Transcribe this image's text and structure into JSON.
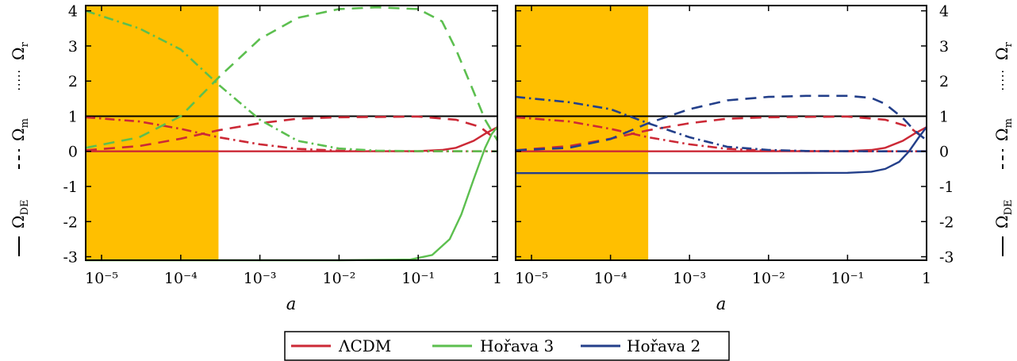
{
  "colors": {
    "lcdm": "#cc2936",
    "horava3": "#5cbf4f",
    "horava2": "#233f8a",
    "shade": "#ffbf00"
  },
  "side_labels": {
    "de": "Ω",
    "de_sub": "DE",
    "m": "Ω",
    "m_sub": "m",
    "r": "Ω",
    "r_sub": "r"
  },
  "legend": [
    {
      "key": "lcdm",
      "label": "ΛCDM"
    },
    {
      "key": "horava3",
      "label": "Hořava 3"
    },
    {
      "key": "horava2",
      "label": "Hořava 2"
    }
  ],
  "chart_data": [
    {
      "type": "line",
      "xlabel": "a",
      "xscale": "log",
      "xlim": [
        6.3e-06,
        1
      ],
      "ylim": [
        -3.1,
        4.15
      ],
      "xticks": [
        {
          "v": 1e-05,
          "label": "10⁻⁵"
        },
        {
          "v": 0.0001,
          "label": "10⁻⁴"
        },
        {
          "v": 0.001,
          "label": "10⁻³"
        },
        {
          "v": 0.01,
          "label": "10⁻²"
        },
        {
          "v": 0.1,
          "label": "10⁻¹"
        },
        {
          "v": 1,
          "label": "1"
        }
      ],
      "yticks": [
        {
          "v": -3,
          "label": "-3"
        },
        {
          "v": -2,
          "label": "-2"
        },
        {
          "v": -1,
          "label": "-1"
        },
        {
          "v": 0,
          "label": "0"
        },
        {
          "v": 1,
          "label": "1"
        },
        {
          "v": 2,
          "label": "2"
        },
        {
          "v": 3,
          "label": "3"
        },
        {
          "v": 4,
          "label": "4"
        }
      ],
      "shaded_region": [
        6.3e-06,
        0.0003
      ],
      "reference_line": 1,
      "series": [
        {
          "color": "lcdm",
          "style": "solid",
          "x": [
            6.3e-06,
            0.01,
            0.1,
            0.2,
            0.3,
            0.5,
            0.7,
            1
          ],
          "y": [
            0,
            0,
            0.005,
            0.04,
            0.1,
            0.3,
            0.5,
            0.69
          ]
        },
        {
          "color": "lcdm",
          "style": "dashed",
          "x": [
            6.3e-06,
            3e-05,
            0.0001,
            0.0003,
            0.001,
            0.003,
            0.01,
            0.1,
            0.3,
            0.6,
            1
          ],
          "y": [
            0.03,
            0.15,
            0.36,
            0.6,
            0.8,
            0.93,
            0.97,
            0.99,
            0.9,
            0.7,
            0.31
          ]
        },
        {
          "color": "lcdm",
          "style": "dashdot",
          "x": [
            6.3e-06,
            3e-05,
            0.0001,
            0.0003,
            0.001,
            0.003,
            0.01,
            0.03,
            0.1,
            1
          ],
          "y": [
            0.97,
            0.85,
            0.64,
            0.4,
            0.2,
            0.07,
            0.02,
            0.005,
            0.002,
            0
          ]
        },
        {
          "color": "horava3",
          "style": "solid",
          "x": [
            6.3e-06,
            0.01,
            0.08,
            0.15,
            0.25,
            0.35,
            0.5,
            0.7,
            0.85,
            1
          ],
          "y": [
            -3.1,
            -3.1,
            -3.08,
            -2.95,
            -2.5,
            -1.8,
            -0.8,
            0.1,
            0.5,
            0.69
          ]
        },
        {
          "color": "horava3",
          "style": "dashed",
          "x": [
            6.3e-06,
            3e-05,
            0.0001,
            0.0003,
            0.001,
            0.003,
            0.01,
            0.03,
            0.1,
            0.2,
            0.3,
            0.5,
            0.7,
            1
          ],
          "y": [
            0.1,
            0.4,
            1.0,
            2.1,
            3.2,
            3.8,
            4.05,
            4.1,
            4.05,
            3.7,
            2.9,
            1.7,
            0.9,
            0.31
          ]
        },
        {
          "color": "horava3",
          "style": "dashdot",
          "x": [
            6.3e-06,
            3e-05,
            0.0001,
            0.0003,
            0.001,
            0.003,
            0.01,
            0.03,
            0.1,
            1
          ],
          "y": [
            4.0,
            3.5,
            2.9,
            1.9,
            0.9,
            0.3,
            0.08,
            0.02,
            0.005,
            0
          ]
        },
        {
          "color": "lcdm",
          "style": "solid",
          "panel": 1,
          "x": [
            6.3e-06,
            0.01,
            0.1,
            0.2,
            0.3,
            0.5,
            0.7,
            1
          ],
          "y": [
            0,
            0,
            0.005,
            0.04,
            0.1,
            0.3,
            0.5,
            0.69
          ]
        }
      ]
    },
    {
      "type": "line",
      "xlabel": "a",
      "xscale": "log",
      "xlim": [
        6.3e-06,
        1
      ],
      "ylim": [
        -3.1,
        4.15
      ],
      "xticks": [
        {
          "v": 1e-05,
          "label": "10⁻⁵"
        },
        {
          "v": 0.0001,
          "label": "10⁻⁴"
        },
        {
          "v": 0.001,
          "label": "10⁻³"
        },
        {
          "v": 0.01,
          "label": "10⁻²"
        },
        {
          "v": 0.1,
          "label": "10⁻¹"
        },
        {
          "v": 1,
          "label": "1"
        }
      ],
      "yticks": [
        {
          "v": -3,
          "label": "-3"
        },
        {
          "v": -2,
          "label": "-2"
        },
        {
          "v": -1,
          "label": "-1"
        },
        {
          "v": 0,
          "label": "0"
        },
        {
          "v": 1,
          "label": "1"
        },
        {
          "v": 2,
          "label": "2"
        },
        {
          "v": 3,
          "label": "3"
        },
        {
          "v": 4,
          "label": "4"
        }
      ],
      "shaded_region": [
        6.3e-06,
        0.0003
      ],
      "reference_line": 1,
      "series": [
        {
          "color": "lcdm",
          "style": "solid",
          "x": [
            6.3e-06,
            0.01,
            0.1,
            0.2,
            0.3,
            0.5,
            0.7,
            1
          ],
          "y": [
            0,
            0,
            0.005,
            0.04,
            0.1,
            0.3,
            0.5,
            0.69
          ]
        },
        {
          "color": "lcdm",
          "style": "dashed",
          "x": [
            6.3e-06,
            3e-05,
            0.0001,
            0.0003,
            0.001,
            0.003,
            0.01,
            0.1,
            0.3,
            0.6,
            1
          ],
          "y": [
            0.03,
            0.15,
            0.36,
            0.6,
            0.8,
            0.93,
            0.97,
            0.99,
            0.9,
            0.7,
            0.31
          ]
        },
        {
          "color": "lcdm",
          "style": "dashdot",
          "x": [
            6.3e-06,
            3e-05,
            0.0001,
            0.0003,
            0.001,
            0.003,
            0.01,
            0.03,
            0.1,
            1
          ],
          "y": [
            0.97,
            0.85,
            0.64,
            0.4,
            0.2,
            0.07,
            0.02,
            0.005,
            0.002,
            0
          ]
        },
        {
          "color": "horava2",
          "style": "solid",
          "x": [
            6.3e-06,
            0.01,
            0.1,
            0.2,
            0.3,
            0.45,
            0.6,
            0.8,
            1
          ],
          "y": [
            -0.62,
            -0.62,
            -0.61,
            -0.58,
            -0.5,
            -0.3,
            0,
            0.4,
            0.69
          ]
        },
        {
          "color": "horava2",
          "style": "dashed",
          "x": [
            6.3e-06,
            3e-05,
            0.0001,
            0.0003,
            0.001,
            0.003,
            0.01,
            0.03,
            0.1,
            0.2,
            0.3,
            0.5,
            0.7,
            1
          ],
          "y": [
            0.03,
            0.1,
            0.35,
            0.8,
            1.2,
            1.45,
            1.55,
            1.58,
            1.58,
            1.52,
            1.35,
            0.95,
            0.6,
            0.31
          ]
        },
        {
          "color": "horava2",
          "style": "dashdot",
          "x": [
            6.3e-06,
            3e-05,
            0.0001,
            0.0003,
            0.001,
            0.003,
            0.01,
            0.03,
            0.1,
            1
          ],
          "y": [
            1.55,
            1.4,
            1.2,
            0.8,
            0.4,
            0.13,
            0.04,
            0.01,
            0.003,
            0
          ]
        }
      ]
    }
  ]
}
